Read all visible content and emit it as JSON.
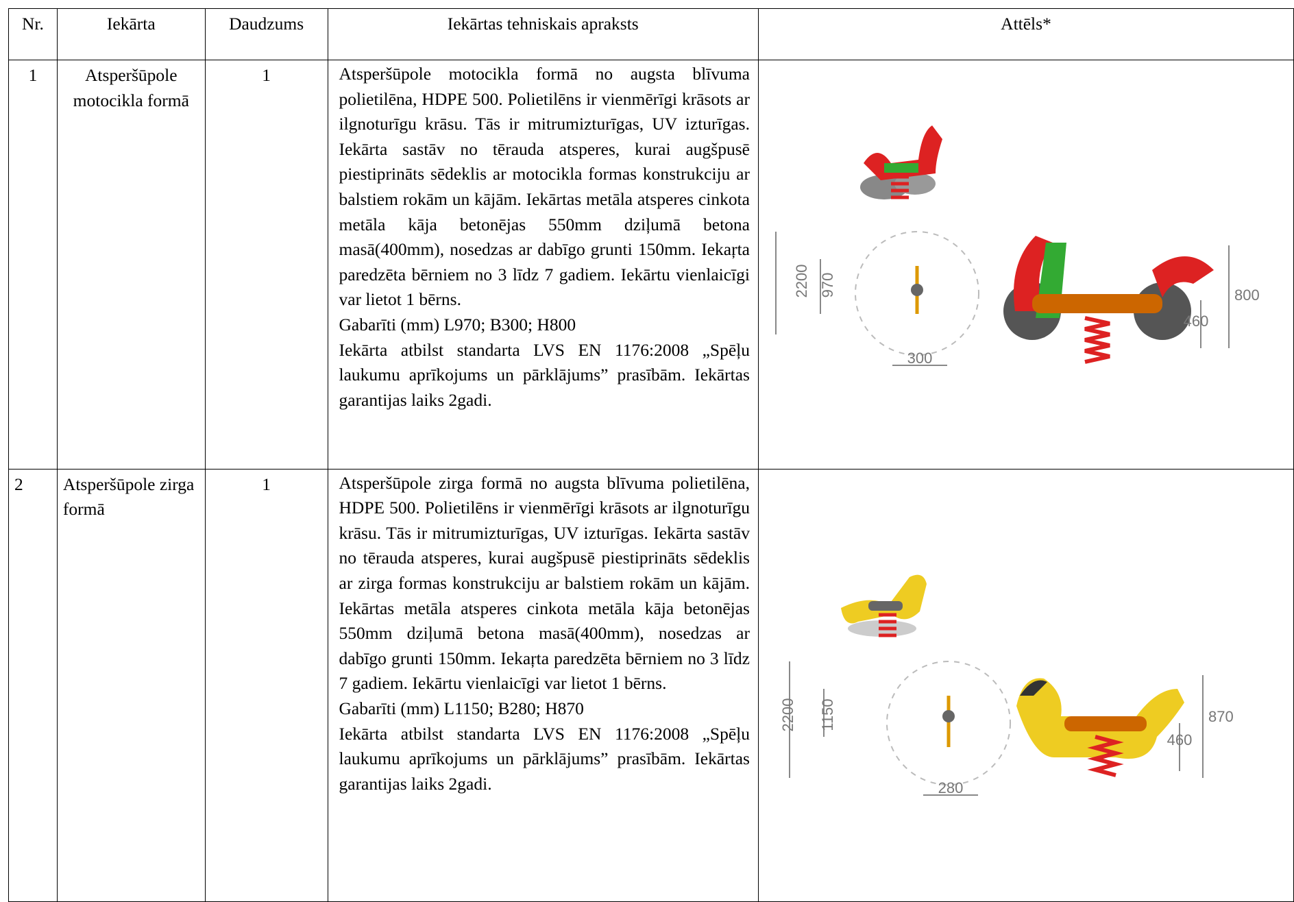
{
  "table": {
    "headers": [
      "Nr.",
      "Iekārta",
      "Daudzums",
      "Iekārtas tehniskais apraksts",
      "Attēls*"
    ],
    "rows": [
      {
        "nr": 1,
        "name": "Atsperšūpole motocikla formā",
        "quantity": 1,
        "description": [
          "Atsperšūpole motocikla formā no augsta blīvuma polietilēna, HDPE 500. Polietilēns ir vienmērīgi krāsots ar ilgnoturīgu krāsu. Tās ir mitrumizturīgas, UV izturīgas. Iekārta sastāv no tērauda atsperes, kurai augšpusē piestiprināts sēdeklis ar motocikla formas konstrukciju ar balstiem rokām un kājām. Iekārtas metāla atsperes cinkota metāla kāja betonējas 550mm dziļumā betona masā(400mm), nosedzas ar dabīgo grunti 150mm. Iekaŗta paredzēta bērniem no 3 līdz 7 gadiem. Iekārtu vienlaicīgi var lietot 1 bērns.",
          "Gabarīti (mm) L970; B300; H800",
          "Iekārta atbilst standarta LVS EN 1176:2008 „Spēļu laukumu aprīkojums un pārklājums” prasībām. Iekārtas garantijas laiks 2gadi."
        ],
        "image_labels": {
          "area": 2200,
          "length": 970,
          "width": 300,
          "height": 800,
          "seat": 460
        }
      },
      {
        "nr": 2,
        "name": "Atsperšūpole zirga formā",
        "quantity": 1,
        "description": [
          "Atsperšūpole zirga formā no augsta blīvuma polietilēna, HDPE 500. Polietilēns ir vienmērīgi krāsots ar ilgnoturīgu krāsu. Tās ir mitrumizturīgas, UV izturīgas. Iekārta sastāv no tērauda atsperes, kurai augšpusē piestiprināts sēdeklis ar zirga formas konstrukciju ar balstiem rokām un kājām. Iekārtas metāla atsperes cinkota metāla kāja betonējas 550mm dziļumā betona masā(400mm), nosedzas ar dabīgo grunti 150mm. Iekaŗta paredzēta bērniem no 3 līdz 7 gadiem. Iekārtu vienlaicīgi var lietot 1 bērns.",
          "Gabarīti (mm) L1150; B280; H870",
          "Iekārta atbilst standarta LVS EN 1176:2008 „Spēļu laukumu aprīkojums un pārklājums” prasībām. Iekārtas garantijas laiks 2gadi."
        ],
        "image_labels": {
          "area": 2200,
          "length": 1150,
          "width": 280,
          "height": 870,
          "seat": 460
        }
      }
    ]
  }
}
